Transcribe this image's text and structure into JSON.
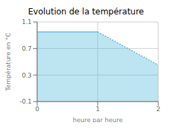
{
  "chart_data": {
    "type": "area",
    "title": "Evolution de la température",
    "xlabel": "heure par heure",
    "ylabel": "Température en °C",
    "x": [
      0,
      1,
      2
    ],
    "series": [
      {
        "color": "#5bbcdc",
        "line_style": "solid",
        "values": [
          0.95,
          0.95,
          null
        ]
      },
      {
        "color": "#5bbcdc",
        "line_style": "dotted",
        "values": [
          null,
          0.95,
          0.45
        ]
      }
    ],
    "xlim": [
      0,
      2.0
    ],
    "ylim": [
      -0.1,
      1.1
    ],
    "xticks": [
      0,
      1,
      2
    ],
    "yticks": [
      -0.1,
      0.3,
      0.7,
      1.1
    ],
    "grid": true
  }
}
